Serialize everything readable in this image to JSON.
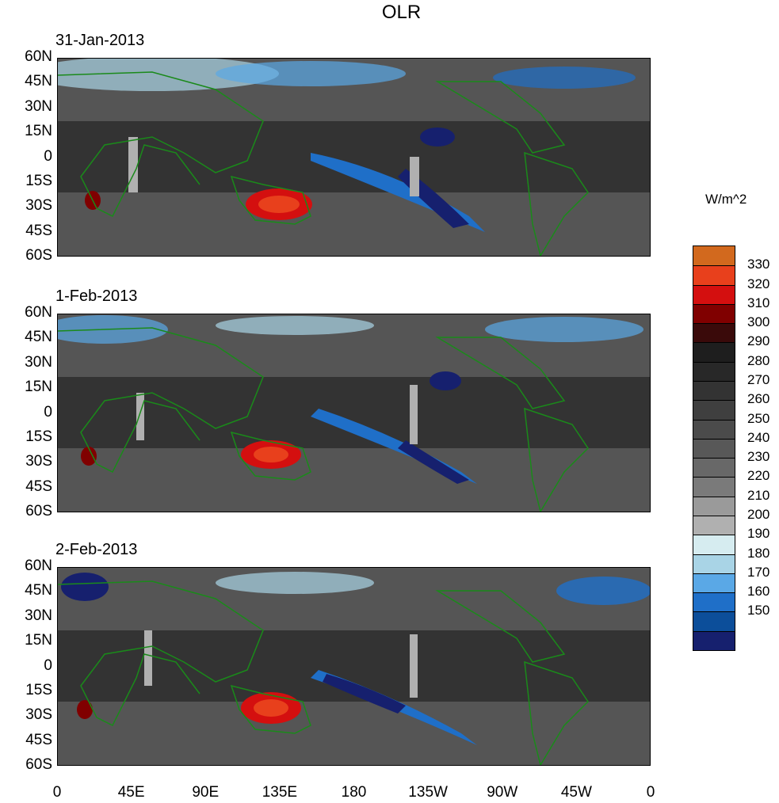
{
  "title": "OLR",
  "panels": [
    {
      "date": "31-Jan-2013"
    },
    {
      "date": "1-Feb-2013"
    },
    {
      "date": "2-Feb-2013"
    }
  ],
  "lat_labels": [
    "60N",
    "45N",
    "30N",
    "15N",
    "0",
    "15S",
    "30S",
    "45S",
    "60S"
  ],
  "lon_labels": [
    "0",
    "45E",
    "90E",
    "135E",
    "180",
    "135W",
    "90W",
    "45W",
    "0"
  ],
  "colorbar": {
    "unit": "W/m^2",
    "ticks": [
      "330",
      "320",
      "310",
      "300",
      "290",
      "280",
      "270",
      "260",
      "250",
      "240",
      "230",
      "220",
      "210",
      "200",
      "190",
      "180",
      "170",
      "160",
      "150"
    ],
    "colors": [
      "#d2691e",
      "#e8401c",
      "#d40f0f",
      "#800000",
      "#3a0a0a",
      "#1e1e1e",
      "#282828",
      "#333333",
      "#3f3f3f",
      "#4b4b4b",
      "#585858",
      "#686868",
      "#7a7a7a",
      "#9a9a9a",
      "#b0b0b0",
      "#d6ecf0",
      "#a9d4e6",
      "#5aa8e6",
      "#1f6fc8",
      "#0c4e9a",
      "#16206e"
    ]
  }
}
